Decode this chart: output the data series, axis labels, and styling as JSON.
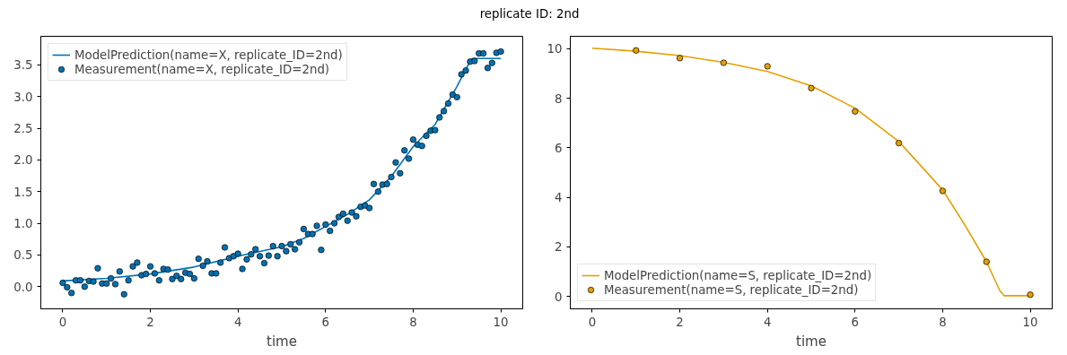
{
  "chart_data": [
    {
      "type": "scatter",
      "title": "replicate ID: 2nd",
      "xlabel": "time",
      "xlim": [
        -0.5,
        10.5
      ],
      "ylim": [
        -0.35,
        3.95
      ],
      "xticks": [
        0,
        2,
        4,
        6,
        8,
        10
      ],
      "yticks": [
        {
          "value": 0,
          "label": "0.0"
        },
        0.5,
        {
          "value": 1,
          "label": "1.0"
        },
        1.5,
        {
          "value": 2,
          "label": "2.0"
        },
        2.5,
        {
          "value": 3,
          "label": "3.0"
        },
        3.5
      ],
      "grid": false,
      "legend": "top left",
      "series": [
        {
          "name": "ModelPrediction(name=X, replicate_ID=2nd)",
          "type": "line",
          "color": "#0072b2",
          "x": [
            0,
            1,
            2,
            3,
            4,
            5,
            5.5,
            6,
            6.5,
            7,
            7.5,
            8,
            8.5,
            9,
            9.3,
            9.35,
            10
          ],
          "values": [
            0.09,
            0.13,
            0.2,
            0.31,
            0.48,
            0.63,
            0.76,
            0.95,
            1.14,
            1.37,
            1.74,
            2.21,
            2.56,
            3.16,
            3.56,
            3.6,
            3.6
          ]
        },
        {
          "name": "Measurement(name=X, replicate_ID=2nd)",
          "marker": "circle",
          "color": "#0072b2",
          "x": [
            0,
            0.1,
            0.2,
            0.3,
            0.4,
            0.5,
            0.6,
            0.7,
            0.8,
            0.9,
            1,
            1.1,
            1.2,
            1.3,
            1.4,
            1.5,
            1.6,
            1.7,
            1.8,
            1.9,
            2,
            2.1,
            2.2,
            2.3,
            2.4,
            2.5,
            2.6,
            2.7,
            2.8,
            2.9,
            3,
            3.1,
            3.2,
            3.3,
            3.4,
            3.5,
            3.6,
            3.7,
            3.8,
            3.9,
            4,
            4.1,
            4.2,
            4.3,
            4.4,
            4.5,
            4.6,
            4.7,
            4.8,
            4.9,
            5,
            5.1,
            5.2,
            5.3,
            5.4,
            5.5,
            5.6,
            5.7,
            5.8,
            5.9,
            6,
            6.1,
            6.2,
            6.3,
            6.4,
            6.5,
            6.6,
            6.7,
            6.8,
            6.9,
            7,
            7.1,
            7.2,
            7.3,
            7.4,
            7.5,
            7.6,
            7.7,
            7.8,
            7.9,
            8,
            8.1,
            8.2,
            8.3,
            8.4,
            8.5,
            8.6,
            8.7,
            8.8,
            8.9,
            9,
            9.1,
            9.2,
            9.3,
            9.4,
            9.5,
            9.6,
            9.7,
            9.8,
            9.9,
            10
          ],
          "values": [
            0.06,
            -0.01,
            -0.1,
            0.1,
            0.1,
            0.0,
            0.09,
            0.08,
            0.29,
            0.05,
            0.05,
            0.13,
            0.04,
            0.24,
            -0.12,
            0.1,
            0.32,
            0.38,
            0.18,
            0.2,
            0.32,
            0.21,
            0.1,
            0.28,
            0.27,
            0.12,
            0.17,
            0.12,
            0.22,
            0.2,
            0.13,
            0.44,
            0.33,
            0.4,
            0.21,
            0.21,
            0.38,
            0.62,
            0.45,
            0.48,
            0.52,
            0.28,
            0.43,
            0.51,
            0.59,
            0.48,
            0.37,
            0.49,
            0.64,
            0.48,
            0.64,
            0.56,
            0.67,
            0.59,
            0.7,
            0.91,
            0.83,
            0.83,
            0.96,
            0.58,
            0.98,
            0.88,
            1.0,
            1.1,
            1.15,
            1.04,
            1.17,
            1.11,
            1.26,
            1.28,
            1.24,
            1.62,
            1.5,
            1.61,
            1.62,
            1.73,
            1.96,
            1.79,
            2.15,
            2.02,
            2.32,
            2.24,
            2.22,
            2.38,
            2.46,
            2.47,
            2.67,
            2.77,
            2.89,
            3.03,
            2.99,
            3.35,
            3.41,
            3.55,
            3.56,
            3.68,
            3.68,
            3.45,
            3.53,
            3.69,
            3.71
          ]
        }
      ]
    },
    {
      "type": "scatter",
      "xlabel": "time",
      "xlim": [
        -0.5,
        10.5
      ],
      "ylim": [
        -0.5,
        10.5
      ],
      "xticks": [
        0,
        2,
        4,
        6,
        8,
        10
      ],
      "yticks": [
        0,
        2,
        4,
        6,
        8,
        10
      ],
      "grid": false,
      "legend": "bottom left",
      "series": [
        {
          "name": "ModelPrediction(name=S, replicate_ID=2nd)",
          "type": "line",
          "color": "#e69f00",
          "x": [
            0,
            1,
            2,
            3,
            4,
            5,
            6,
            7,
            8,
            8.5,
            9,
            9.3,
            9.4,
            10
          ],
          "values": [
            10.02,
            9.9,
            9.72,
            9.45,
            9.08,
            8.5,
            7.6,
            6.25,
            4.3,
            2.9,
            1.4,
            0.25,
            0.03,
            0.03
          ]
        },
        {
          "name": "Measurement(name=S, replicate_ID=2nd)",
          "marker": "circle",
          "color": "#e69f00",
          "x": [
            1,
            2,
            3,
            4,
            5,
            6,
            7,
            8,
            9,
            10
          ],
          "values": [
            9.93,
            9.62,
            9.43,
            9.29,
            8.41,
            7.47,
            6.19,
            4.26,
            1.4,
            0.07
          ]
        }
      ]
    }
  ]
}
